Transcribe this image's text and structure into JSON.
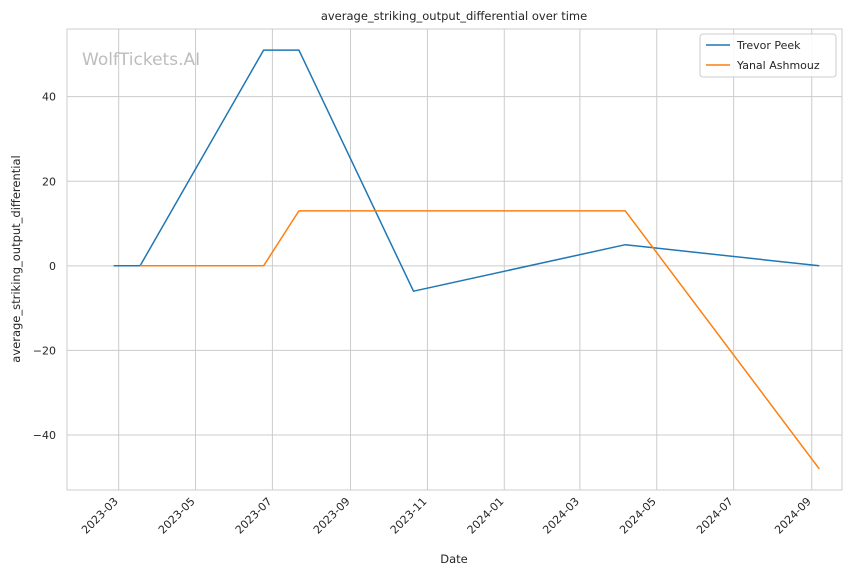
{
  "chart_data": {
    "type": "line",
    "title": "average_striking_output_differential over time",
    "xlabel": "Date",
    "ylabel": "average_striking_output_differential",
    "watermark": "WolfTickets.AI",
    "x_ticks": [
      "2023-03",
      "2023-05",
      "2023-07",
      "2023-09",
      "2023-11",
      "2024-01",
      "2024-03",
      "2024-05",
      "2024-07",
      "2024-09"
    ],
    "y_ticks": [
      40,
      20,
      0,
      -20,
      -40
    ],
    "y_tick_labels": [
      "40",
      "20",
      "0",
      "−20",
      "−40"
    ],
    "ylim": [
      -53,
      56
    ],
    "xlim": [
      "2023-01-19",
      "2024-09-25"
    ],
    "grid": true,
    "legend_position": "top-right",
    "series": [
      {
        "name": "Trevor Peek",
        "color": "#1f77b4",
        "points": [
          {
            "x": "2023-02-25",
            "y": 0
          },
          {
            "x": "2023-03-18",
            "y": 0
          },
          {
            "x": "2023-06-24",
            "y": 51
          },
          {
            "x": "2023-07-22",
            "y": 51
          },
          {
            "x": "2023-10-21",
            "y": -6
          },
          {
            "x": "2024-04-06",
            "y": 5
          },
          {
            "x": "2024-09-07",
            "y": 0
          }
        ]
      },
      {
        "name": "Yanal Ashmouz",
        "color": "#ff7f0e",
        "points": [
          {
            "x": "2023-03-18",
            "y": 0
          },
          {
            "x": "2023-06-24",
            "y": 0
          },
          {
            "x": "2023-07-22",
            "y": 13
          },
          {
            "x": "2024-04-06",
            "y": 13
          },
          {
            "x": "2024-09-07",
            "y": -48
          }
        ]
      }
    ]
  }
}
